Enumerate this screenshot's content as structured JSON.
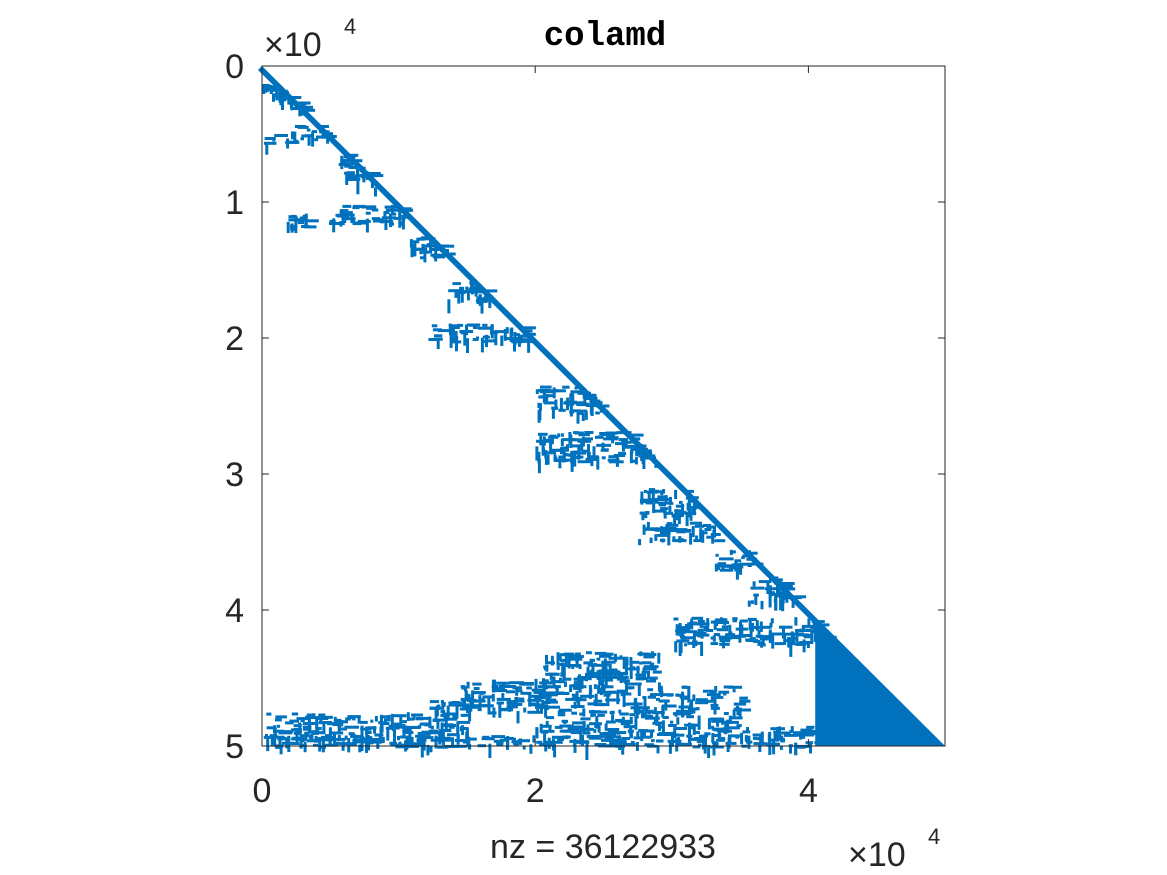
{
  "chart_data": {
    "type": "spy",
    "title": "colamd",
    "xlabel": "nz = 36122933",
    "ylabel": "",
    "matrix_size": 50000,
    "xlim": [
      0,
      50000
    ],
    "ylim": [
      0,
      50000
    ],
    "y_reversed": true,
    "x_ticks": [
      0,
      20000,
      40000
    ],
    "x_tick_labels": [
      "0",
      "2",
      "4"
    ],
    "y_ticks": [
      0,
      10000,
      20000,
      30000,
      40000,
      50000
    ],
    "y_tick_labels": [
      "0",
      "1",
      "2",
      "3",
      "4",
      "5"
    ],
    "x_multiplier": {
      "base": "×10",
      "exp": "4"
    },
    "y_multiplier": {
      "base": "×10",
      "exp": "4"
    },
    "marker_color": "#0072BD",
    "structure": "lower-triangular",
    "diagonal_band": [
      [
        0,
        0
      ],
      [
        50000,
        50000
      ]
    ],
    "dense_block": {
      "col_from": 40500,
      "col_to": 50000,
      "row_from": 41000,
      "row_to": 50000
    },
    "nonzero_clusters": [
      {
        "col_from": 0,
        "col_to": 600,
        "row_from": 1300,
        "row_to": 1700
      },
      {
        "col_from": 700,
        "col_to": 2400,
        "row_from": 1700,
        "row_to": 2400
      },
      {
        "col_from": 1800,
        "col_to": 3000,
        "row_from": 2500,
        "row_to": 3200
      },
      {
        "col_from": 0,
        "col_to": 4500,
        "row_from": 5000,
        "row_to": 5600
      },
      {
        "col_from": 2000,
        "col_to": 5500,
        "row_from": 4300,
        "row_to": 5000
      },
      {
        "col_from": 5500,
        "col_to": 7500,
        "row_from": 6300,
        "row_to": 7300
      },
      {
        "col_from": 6000,
        "col_to": 9000,
        "row_from": 7700,
        "row_to": 8400
      },
      {
        "col_from": 1800,
        "col_to": 3200,
        "row_from": 10600,
        "row_to": 11800
      },
      {
        "col_from": 4500,
        "col_to": 10500,
        "row_from": 10200,
        "row_to": 11600
      },
      {
        "col_from": 10500,
        "col_to": 13500,
        "row_from": 12500,
        "row_to": 14000
      },
      {
        "col_from": 13500,
        "col_to": 17000,
        "row_from": 15800,
        "row_to": 17200
      },
      {
        "col_from": 12000,
        "col_to": 19500,
        "row_from": 18900,
        "row_to": 20200
      },
      {
        "col_from": 20000,
        "col_to": 25000,
        "row_from": 23500,
        "row_to": 25500
      },
      {
        "col_from": 20000,
        "col_to": 29000,
        "row_from": 26800,
        "row_to": 29000
      },
      {
        "col_from": 27500,
        "col_to": 32000,
        "row_from": 31000,
        "row_to": 33000
      },
      {
        "col_from": 27500,
        "col_to": 33500,
        "row_from": 33500,
        "row_to": 34800
      },
      {
        "col_from": 33000,
        "col_to": 36000,
        "row_from": 35500,
        "row_to": 37000
      },
      {
        "col_from": 35500,
        "col_to": 39000,
        "row_from": 37500,
        "row_to": 39500
      },
      {
        "col_from": 30000,
        "col_to": 41000,
        "row_from": 40500,
        "row_to": 42500
      },
      {
        "col_from": 20500,
        "col_to": 29000,
        "row_from": 43000,
        "row_to": 45500
      },
      {
        "col_from": 14500,
        "col_to": 21000,
        "row_from": 45000,
        "row_to": 47500
      },
      {
        "col_from": 12000,
        "col_to": 15000,
        "row_from": 46500,
        "row_to": 49500
      },
      {
        "col_from": 0,
        "col_to": 12000,
        "row_from": 47500,
        "row_to": 49500
      },
      {
        "col_from": 20000,
        "col_to": 35000,
        "row_from": 45500,
        "row_to": 48500
      },
      {
        "col_from": 0,
        "col_to": 20000,
        "row_from": 49200,
        "row_to": 50000
      },
      {
        "col_from": 20000,
        "col_to": 40500,
        "row_from": 48500,
        "row_to": 50000
      }
    ]
  }
}
